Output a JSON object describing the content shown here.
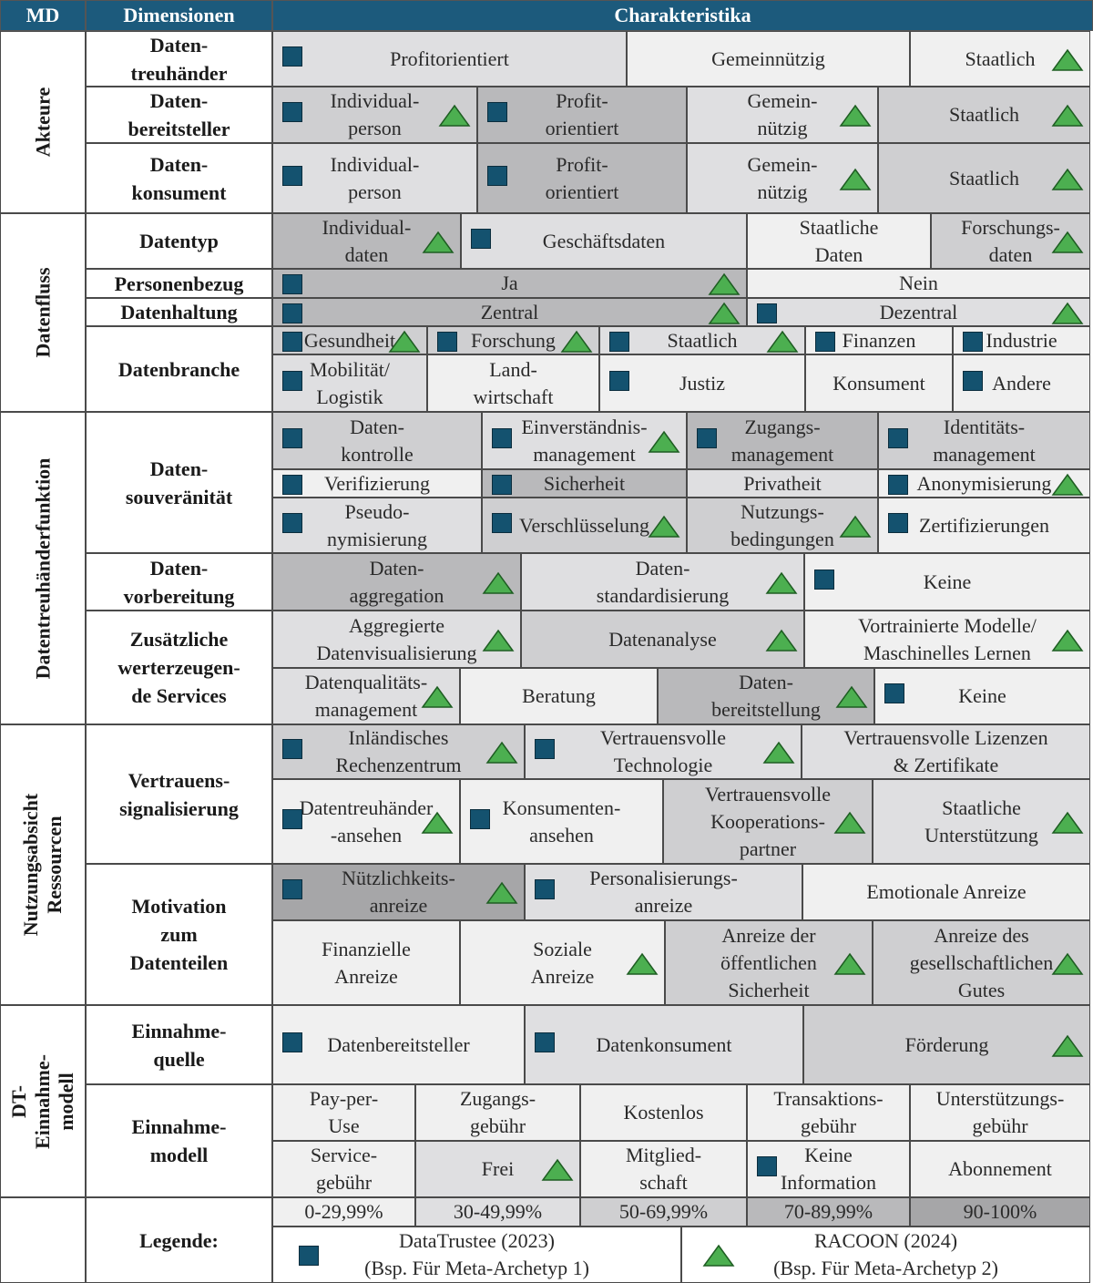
{
  "header": {
    "md": "MD",
    "dimensionen": "Dimensionen",
    "charakteristika": "Charakteristika"
  },
  "meta_dimensions": [
    {
      "id": "md-akteure",
      "label": "Akteure"
    },
    {
      "id": "md-datenfluss",
      "label": "Datenfluss"
    },
    {
      "id": "md-datentreuhaenderfunktion",
      "label": "Datentreuhänderfunktion"
    },
    {
      "id": "md-nutzungsabsicht-ressourcen",
      "label": "Nutzungsabsicht\nRessourcen"
    },
    {
      "id": "md-dt-einnahmemodell",
      "label": "DT-Einnahme-\nmodell"
    }
  ],
  "dimensions": [
    {
      "id": "dim-datentreuhaender",
      "label": "Daten-\ntreuhänder"
    },
    {
      "id": "dim-datenbereitsteller",
      "label": "Daten-\nbereitsteller"
    },
    {
      "id": "dim-datenkonsument",
      "label": "Daten-\nkonsument"
    },
    {
      "id": "dim-datentyp",
      "label": "Datentyp"
    },
    {
      "id": "dim-personenbezug",
      "label": "Personenbezug"
    },
    {
      "id": "dim-datenhaltung",
      "label": "Datenhaltung"
    },
    {
      "id": "dim-datenbranche",
      "label": "Datenbranche"
    },
    {
      "id": "dim-datensouveraenitaet",
      "label": "Daten-\nsouveränität"
    },
    {
      "id": "dim-datenvorbereitung",
      "label": "Daten-\nvorbereitung"
    },
    {
      "id": "dim-zusaetzliche-services",
      "label": "Zusätzliche\nwerterzeugen-\nde Services"
    },
    {
      "id": "dim-vertrauenssignalisierung",
      "label": "Vertrauens-\nsignalisierung"
    },
    {
      "id": "dim-motivation",
      "label": "Motivation\nzum\nDatenteilen"
    },
    {
      "id": "dim-einnahmequelle",
      "label": "Einnahme-\nquelle"
    },
    {
      "id": "dim-einnahmemodell",
      "label": "Einnahme-\nmodell"
    },
    {
      "id": "dim-legende",
      "label": "Legende:"
    }
  ],
  "characteristics": [
    {
      "text": "Profitorientiert",
      "shade": 1,
      "sq": true,
      "tri": false
    },
    {
      "text": "Gemeinnützig",
      "shade": 0,
      "sq": false,
      "tri": false
    },
    {
      "text": "Staatlich",
      "shade": 0,
      "sq": false,
      "tri": true
    },
    {
      "text": "Individual-\nperson",
      "shade": 2,
      "sq": true,
      "tri": true
    },
    {
      "text": "Profit-\norientiert",
      "shade": 3,
      "sq": true,
      "tri": false
    },
    {
      "text": "Gemein-\nnützig",
      "shade": 1,
      "sq": false,
      "tri": true
    },
    {
      "text": "Staatlich",
      "shade": 2,
      "sq": false,
      "tri": true
    },
    {
      "text": "Individual-\nperson",
      "shade": 1,
      "sq": true,
      "tri": false
    },
    {
      "text": "Profit-\norientiert",
      "shade": 3,
      "sq": true,
      "tri": false
    },
    {
      "text": "Gemein-\nnützig",
      "shade": 1,
      "sq": false,
      "tri": true
    },
    {
      "text": "Staatlich",
      "shade": 2,
      "sq": false,
      "tri": true
    },
    {
      "text": "Individual-\ndaten",
      "shade": 3,
      "sq": false,
      "tri": true
    },
    {
      "text": "Geschäftsdaten",
      "shade": 1,
      "sq": true,
      "tri": false
    },
    {
      "text": "Staatliche\nDaten",
      "shade": 0,
      "sq": false,
      "tri": false
    },
    {
      "text": "Forschungs-\ndaten",
      "shade": 2,
      "sq": false,
      "tri": true
    },
    {
      "text": "Ja",
      "shade": 3,
      "sq": true,
      "tri": true
    },
    {
      "text": "Nein",
      "shade": 0,
      "sq": false,
      "tri": false
    },
    {
      "text": "Zentral",
      "shade": 3,
      "sq": true,
      "tri": true
    },
    {
      "text": "Dezentral",
      "shade": 1,
      "sq": true,
      "tri": true
    },
    {
      "text": "Gesundheit",
      "shade": 2,
      "sq": true,
      "tri": true
    },
    {
      "text": "Forschung",
      "shade": 2,
      "sq": true,
      "tri": true
    },
    {
      "text": "Staatlich",
      "shade": 1,
      "sq": true,
      "tri": true
    },
    {
      "text": "Finanzen",
      "shade": 0,
      "sq": true,
      "tri": false
    },
    {
      "text": "Industrie",
      "shade": 0,
      "sq": true,
      "tri": false
    },
    {
      "text": "Mobilität/\nLogistik",
      "shade": 1,
      "sq": true,
      "tri": false
    },
    {
      "text": "Land-\nwirtschaft",
      "shade": 0,
      "sq": false,
      "tri": false
    },
    {
      "text": "Justiz",
      "shade": 0,
      "sq": true,
      "tri": false
    },
    {
      "text": "Konsument",
      "shade": 0,
      "sq": false,
      "tri": false
    },
    {
      "text": "Andere",
      "shade": 0,
      "sq": true,
      "tri": false
    },
    {
      "text": "Daten-\nkontrolle",
      "shade": 2,
      "sq": true,
      "tri": false
    },
    {
      "text": "Einverständnis-\nmanagement",
      "shade": 1,
      "sq": true,
      "tri": true
    },
    {
      "text": "Zugangs-\nmanagement",
      "shade": 3,
      "sq": true,
      "tri": false
    },
    {
      "text": "Identitäts-\nmanagement",
      "shade": 2,
      "sq": true,
      "tri": false
    },
    {
      "text": "Verifizierung",
      "shade": 0,
      "sq": true,
      "tri": false
    },
    {
      "text": "Sicherheit",
      "shade": 3,
      "sq": true,
      "tri": false
    },
    {
      "text": "Privatheit",
      "shade": 1,
      "sq": false,
      "tri": false
    },
    {
      "text": "Anonymisierung",
      "shade": 0,
      "sq": true,
      "tri": true
    },
    {
      "text": "Pseudo-\nnymisierung",
      "shade": 1,
      "sq": true,
      "tri": false
    },
    {
      "text": "Verschlüsselung",
      "shade": 2,
      "sq": true,
      "tri": true
    },
    {
      "text": "Nutzungs-\nbedingungen",
      "shade": 2,
      "sq": false,
      "tri": true
    },
    {
      "text": "Zertifizierungen",
      "shade": 0,
      "sq": true,
      "tri": false
    },
    {
      "text": "Daten-\naggregation",
      "shade": 3,
      "sq": false,
      "tri": true
    },
    {
      "text": "Daten-\nstandardisierung",
      "shade": 1,
      "sq": false,
      "tri": true
    },
    {
      "text": "Keine",
      "shade": 0,
      "sq": true,
      "tri": false
    },
    {
      "text": "Aggregierte\nDatenvisualisierung",
      "shade": 1,
      "sq": false,
      "tri": true
    },
    {
      "text": "Datenanalyse",
      "shade": 2,
      "sq": false,
      "tri": true
    },
    {
      "text": "Vortrainierte Modelle/\nMaschinelles Lernen",
      "shade": 0,
      "sq": false,
      "tri": true
    },
    {
      "text": "Datenqualitäts-\nmanagement",
      "shade": 1,
      "sq": false,
      "tri": true
    },
    {
      "text": "Beratung",
      "shade": 0,
      "sq": false,
      "tri": false
    },
    {
      "text": "Daten-\nbereitstellung",
      "shade": 3,
      "sq": false,
      "tri": true
    },
    {
      "text": "Keine",
      "shade": 0,
      "sq": true,
      "tri": false
    },
    {
      "text": "Inländisches\nRechenzentrum",
      "shade": 2,
      "sq": true,
      "tri": true
    },
    {
      "text": "Vertrauensvolle\nTechnologie",
      "shade": 1,
      "sq": true,
      "tri": true
    },
    {
      "text": "Vertrauensvolle Lizenzen\n& Zertifikate",
      "shade": 1,
      "sq": false,
      "tri": false
    },
    {
      "text": "Datentreuhänder\n-ansehen",
      "shade": 0,
      "sq": true,
      "tri": true
    },
    {
      "text": "Konsumenten-\nansehen",
      "shade": 0,
      "sq": true,
      "tri": false
    },
    {
      "text": "Vertrauensvolle\nKooperations-\npartner",
      "shade": 2,
      "sq": false,
      "tri": true
    },
    {
      "text": "Staatliche\nUnterstützung",
      "shade": 1,
      "sq": false,
      "tri": true
    },
    {
      "text": "Nützlichkeits-\nanreize",
      "shade": 4,
      "sq": true,
      "tri": true
    },
    {
      "text": "Personalisierungs-\nanreize",
      "shade": 1,
      "sq": true,
      "tri": false
    },
    {
      "text": "Emotionale Anreize",
      "shade": 0,
      "sq": false,
      "tri": false
    },
    {
      "text": "Finanzielle\nAnreize",
      "shade": 0,
      "sq": false,
      "tri": false
    },
    {
      "text": "Soziale\nAnreize",
      "shade": 0,
      "sq": false,
      "tri": true
    },
    {
      "text": "Anreize der\nöffentlichen\nSicherheit",
      "shade": 2,
      "sq": false,
      "tri": true
    },
    {
      "text": "Anreize des\ngesellschaftlichen\nGutes",
      "shade": 2,
      "sq": false,
      "tri": true
    },
    {
      "text": "Datenbereitsteller",
      "shade": 0,
      "sq": true,
      "tri": false
    },
    {
      "text": "Datenkonsument",
      "shade": 1,
      "sq": true,
      "tri": false
    },
    {
      "text": "Förderung",
      "shade": 2,
      "sq": false,
      "tri": true
    },
    {
      "text": "Pay-per-\nUse",
      "shade": 0,
      "sq": false,
      "tri": false
    },
    {
      "text": "Zugangs-\ngebühr",
      "shade": 0,
      "sq": false,
      "tri": false
    },
    {
      "text": "Kostenlos",
      "shade": 0,
      "sq": false,
      "tri": false
    },
    {
      "text": "Transaktions-\ngebühr",
      "shade": 0,
      "sq": false,
      "tri": false
    },
    {
      "text": "Unterstützungs-\ngebühr",
      "shade": 0,
      "sq": false,
      "tri": false
    },
    {
      "text": "Service-\ngebühr",
      "shade": 0,
      "sq": false,
      "tri": false
    },
    {
      "text": "Frei",
      "shade": 1,
      "sq": false,
      "tri": true
    },
    {
      "text": "Mitglied-\nschaft",
      "shade": 0,
      "sq": false,
      "tri": false
    },
    {
      "text": "Keine\nInformation",
      "shade": 0,
      "sq": true,
      "tri": false
    },
    {
      "text": "Abonnement",
      "shade": 0,
      "sq": false,
      "tri": false
    }
  ],
  "legend": {
    "ranges": [
      "0-29,99%",
      "30-49,99%",
      "50-69,99%",
      "70-89,99%",
      "90-100%"
    ],
    "datatrustee": "DataTrustee (2023)\n(Bsp. Für Meta-Archetyp 1)",
    "racoon": "RACOON (2024)\n(Bsp. Für Meta-Archetyp 2)"
  },
  "colors": {
    "header": "#1c5a7c",
    "shade_0": "#f0f0f0",
    "shade_1": "#dfdfe1",
    "shade_2": "#cfcfd1",
    "shade_3": "#b9b9bb",
    "shade_4": "#a6a6a8",
    "square": "#14526f",
    "triangle": "#4caf50"
  }
}
